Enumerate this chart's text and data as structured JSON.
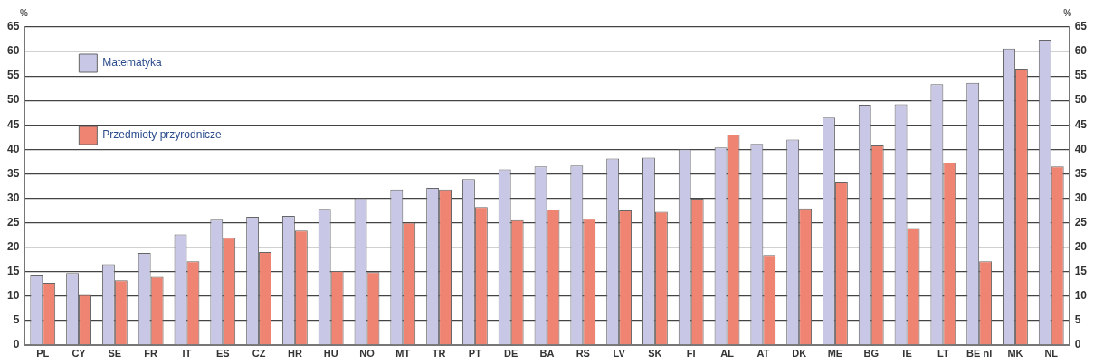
{
  "chart_data": {
    "type": "bar",
    "ylabel": "%",
    "y2label": "%",
    "categories": [
      "PL",
      "CY",
      "SE",
      "FR",
      "IT",
      "ES",
      "CZ",
      "HR",
      "HU",
      "NO",
      "MT",
      "TR",
      "PT",
      "DE",
      "BA",
      "RS",
      "LV",
      "SK",
      "FI",
      "AL",
      "AT",
      "DK",
      "ME",
      "BG",
      "IE",
      "LT",
      "BE nl",
      "MK",
      "NL"
    ],
    "series": [
      {
        "name": "Matematyka",
        "color": "#c8c8e6",
        "values": [
          14.2,
          14.7,
          16.5,
          18.8,
          22.6,
          25.6,
          26.2,
          26.4,
          27.8,
          30.0,
          31.8,
          32.1,
          33.9,
          35.9,
          36.5,
          36.7,
          38.1,
          38.3,
          40.0,
          40.4,
          41.1,
          42.0,
          46.5,
          49.1,
          49.2,
          53.3,
          53.6,
          60.6,
          62.4
        ]
      },
      {
        "name": "Przedmioty przyrodnicze",
        "color": "#f08472",
        "values": [
          12.7,
          10.2,
          13.2,
          13.9,
          17.1,
          21.9,
          19.0,
          23.4,
          15.1,
          14.9,
          25.0,
          31.8,
          28.2,
          25.5,
          27.7,
          25.8,
          27.5,
          27.2,
          29.9,
          43.0,
          18.4,
          27.9,
          33.2,
          40.8,
          23.9,
          37.3,
          17.1,
          56.5,
          36.5
        ]
      }
    ],
    "ylim": [
      0,
      65
    ],
    "yticks": [
      0,
      5,
      10,
      15,
      20,
      25,
      30,
      35,
      40,
      45,
      50,
      55,
      60,
      65
    ],
    "y2lim": [
      0,
      65
    ],
    "y2ticks": [
      0,
      5,
      10,
      15,
      20,
      25,
      30,
      35,
      40,
      45,
      50,
      55,
      60,
      65
    ],
    "grid": "y",
    "legend": "top left"
  }
}
